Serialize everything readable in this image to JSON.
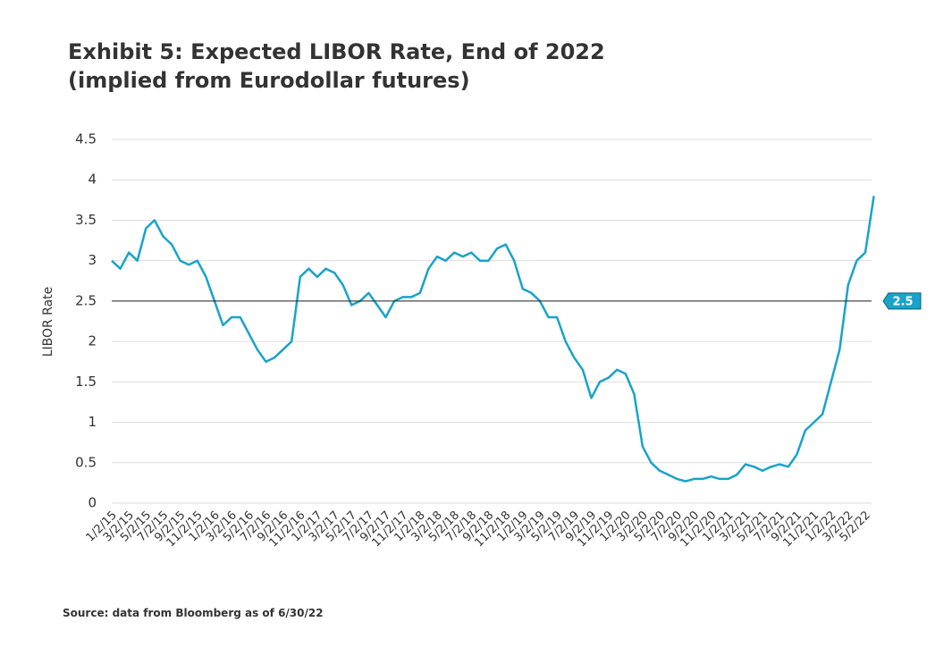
{
  "chart_data": {
    "type": "line",
    "title": [
      "Exhibit 5: Expected LIBOR Rate, End of 2022",
      "(implied from Eurodollar futures)"
    ],
    "y_label": "LIBOR Rate",
    "source": "Source: data from Bloomberg as of 6/30/22",
    "categories": [
      "1/2/15",
      null,
      "3/2/15",
      null,
      "5/2/15",
      null,
      "7/2/15",
      null,
      "9/2/15",
      null,
      "11/2/15",
      null,
      "1/2/16",
      null,
      "3/2/16",
      null,
      "5/2/16",
      null,
      "7/2/16",
      null,
      "9/2/16",
      null,
      "11/2/16",
      null,
      "1/2/17",
      null,
      "3/2/17",
      null,
      "5/2/17",
      null,
      "7/2/17",
      null,
      "9/2/17",
      null,
      "11/2/17",
      null,
      "1/2/18",
      null,
      "3/2/18",
      null,
      "5/2/18",
      null,
      "7/2/18",
      null,
      "9/2/18",
      null,
      "11/2/18",
      null,
      "1/2/19",
      null,
      "3/2/19",
      null,
      "5/2/19",
      null,
      "7/2/19",
      null,
      "9/2/19",
      null,
      "11/2/19",
      null,
      "1/2/20",
      null,
      "3/2/20",
      null,
      "5/2/20",
      null,
      "7/2/20",
      null,
      "9/2/20",
      null,
      "11/2/20",
      null,
      "1/2/21",
      null,
      "3/2/21",
      null,
      "5/2/21",
      null,
      "7/2/21",
      null,
      "9/2/21",
      null,
      "11/2/21",
      null,
      "1/2/22",
      null,
      "3/2/22",
      null,
      "5/2/22",
      null
    ],
    "series": [
      {
        "name": "Expected LIBOR Rate",
        "color": "#19a3c9",
        "values": [
          3.0,
          2.9,
          3.1,
          3.0,
          3.4,
          3.5,
          3.3,
          3.2,
          3.0,
          2.95,
          3.0,
          2.8,
          2.5,
          2.2,
          2.3,
          2.3,
          2.1,
          1.9,
          1.75,
          1.8,
          1.9,
          2.0,
          2.8,
          2.9,
          2.8,
          2.9,
          2.85,
          2.7,
          2.45,
          2.5,
          2.6,
          2.45,
          2.3,
          2.5,
          2.55,
          2.55,
          2.6,
          2.9,
          3.05,
          3.0,
          3.1,
          3.05,
          3.1,
          3.0,
          3.0,
          3.15,
          3.2,
          3.0,
          2.65,
          2.6,
          2.5,
          2.3,
          2.3,
          2.0,
          1.8,
          1.65,
          1.3,
          1.5,
          1.55,
          1.65,
          1.6,
          1.35,
          0.7,
          0.5,
          0.4,
          0.35,
          0.3,
          0.27,
          0.3,
          0.3,
          0.33,
          0.3,
          0.3,
          0.35,
          0.48,
          0.45,
          0.4,
          0.45,
          0.48,
          0.45,
          0.6,
          0.9,
          1.0,
          1.1,
          1.5,
          1.9,
          2.7,
          3.0,
          3.1,
          3.8
        ]
      }
    ],
    "reference_line": 2.5,
    "ylim": [
      0,
      4.5
    ],
    "yticks": [
      0,
      0.5,
      1,
      1.5,
      2,
      2.5,
      3,
      3.5,
      4,
      4.5
    ],
    "grid": true
  }
}
